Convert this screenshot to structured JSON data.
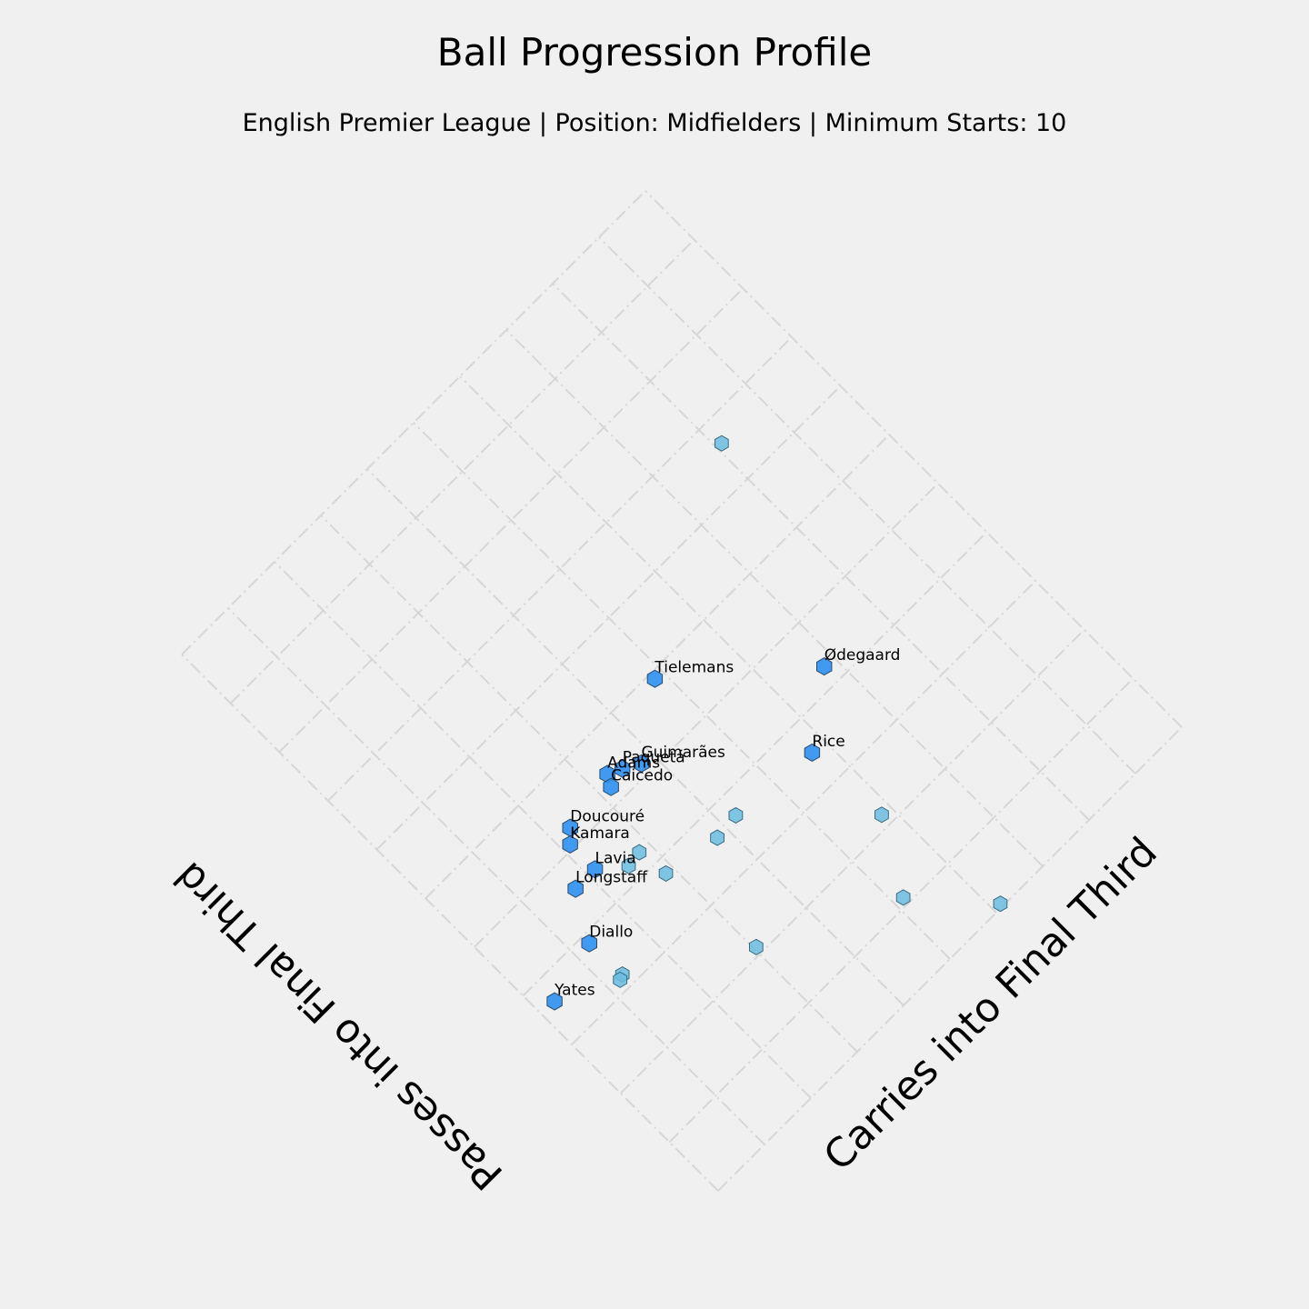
{
  "chart_data": {
    "type": "scatter",
    "title": "Ball Progression Profile",
    "subtitle": "English Premier League | Position: Midfielders | Minimum Starts: 10",
    "xlabel": "Carries into Final Third",
    "ylabel": "Passes into Final Third",
    "xlim": [
      0,
      50
    ],
    "ylim": [
      0,
      110
    ],
    "xticks": [
      0,
      5,
      10,
      15,
      20,
      25,
      30,
      35,
      40,
      45,
      50
    ],
    "yticks": [
      0,
      10,
      20,
      30,
      40,
      50,
      60,
      70,
      80,
      90,
      100,
      110
    ],
    "grid": true,
    "highlight_color": "#2f8fef",
    "other_color": "#6bbce0",
    "highlighted": {
      "labels": [
        "Ødegaard",
        "Tielemans",
        "Rice",
        "Guimarães",
        "Paquetá",
        "Adams",
        "Caicedo",
        "Doucouré",
        "Kamara",
        "Lavia",
        "Longstaff",
        "Diallo",
        "Yates"
      ],
      "x": [
        34.0,
        24.2,
        28.7,
        18.9,
        17.6,
        16.5,
        16.0,
        11.6,
        10.7,
        10.7,
        8.6,
        6.4,
        1.4
      ],
      "y": [
        42.9,
        59.0,
        35.3,
        51.7,
        53.1,
        54.1,
        52.4,
        52.4,
        50.7,
        45.6,
        45.6,
        38.6,
        36.2
      ]
    },
    "others": {
      "x": [
        40.5,
        19.0,
        21.2,
        29.1,
        14.0,
        12.7,
        14.3,
        25.8,
        30.7,
        15.2,
        6.5,
        6.1
      ],
      "y": [
        76.3,
        36.3,
        36.7,
        21.8,
        42.8,
        42.5,
        37.9,
        11.1,
        0.5,
        21.1,
        32.0,
        31.7
      ]
    }
  }
}
